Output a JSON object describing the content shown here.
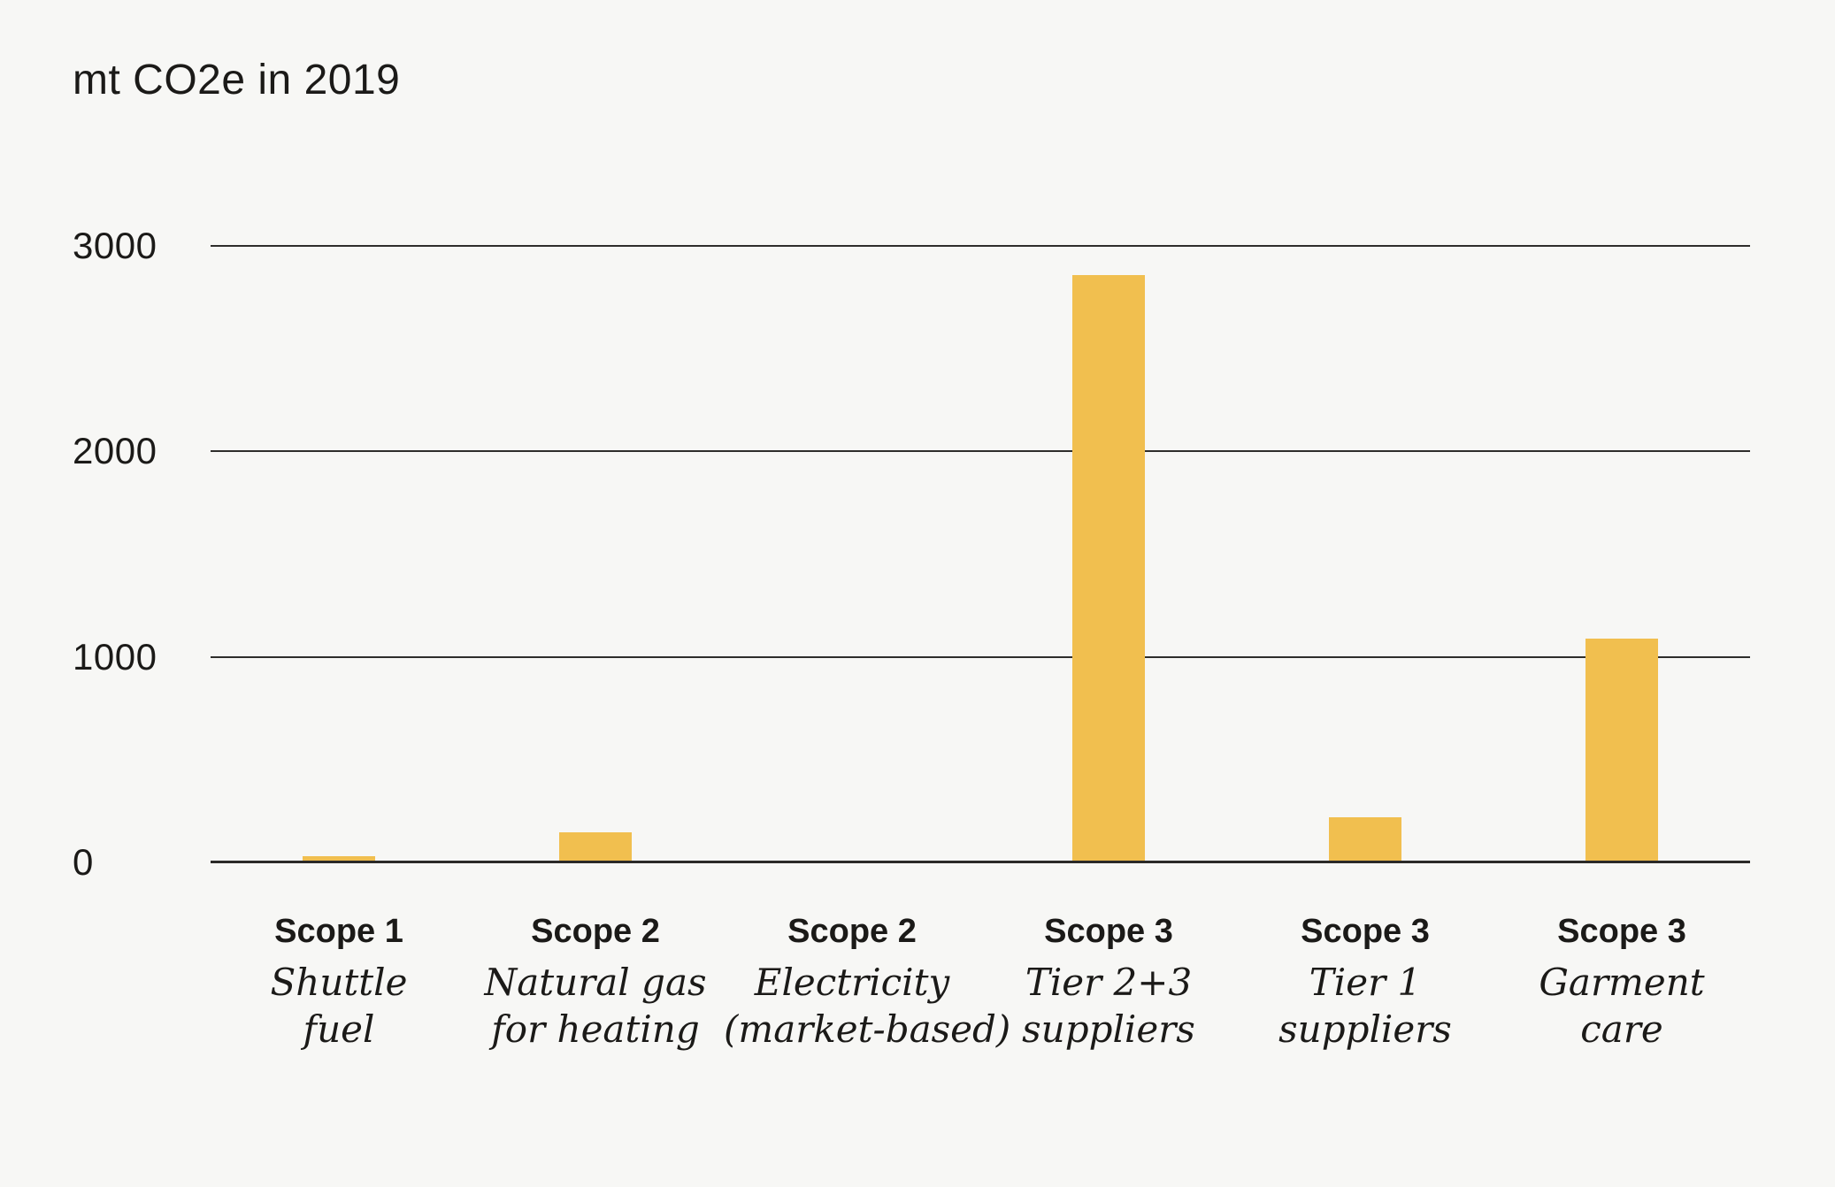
{
  "title": "mt CO2e in 2019",
  "colors": {
    "background": "#f7f7f5",
    "bar": "#f1bf4f",
    "grid_line": "#2e2d2b",
    "axis_line": "#2b2a28",
    "text": "#1b1a18"
  },
  "chart_data": {
    "type": "bar",
    "title": "mt CO2e in 2019",
    "xlabel": "",
    "ylabel": "",
    "ylim": [
      0,
      3000
    ],
    "yticks": [
      0,
      1000,
      2000,
      3000
    ],
    "grid": "horizontal gridlines at each ytick, drawn behind bars",
    "legend": "none",
    "bar_color": "#f1bf4f",
    "categories": [
      "Scope 1 Shuttle fuel",
      "Scope 2 Natural gas for heating",
      "Scope 2 Electricity (market-based)",
      "Scope 3 Tier 2+3 suppliers",
      "Scope 3 Tier 1 suppliers",
      "Scope 3 Garment care"
    ],
    "series": [
      {
        "name": "mt CO2e in 2019",
        "values": [
          30,
          145,
          0,
          2860,
          220,
          1090
        ]
      }
    ],
    "category_labels": [
      {
        "scope": "Scope 1",
        "sublabel_lines": [
          "Shuttle",
          "fuel"
        ],
        "value": 30
      },
      {
        "scope": "Scope 2",
        "sublabel_lines": [
          "Natural gas",
          "for heating"
        ],
        "value": 145
      },
      {
        "scope": "Scope 2",
        "sublabel_lines": [
          "Electricity",
          "(market-based)"
        ],
        "value": 0
      },
      {
        "scope": "Scope 3",
        "sublabel_lines": [
          "Tier 2+3",
          "suppliers"
        ],
        "value": 2860
      },
      {
        "scope": "Scope 3",
        "sublabel_lines": [
          "Tier 1",
          "suppliers"
        ],
        "value": 220
      },
      {
        "scope": "Scope 3",
        "sublabel_lines": [
          "Garment",
          "care"
        ],
        "value": 1090
      }
    ]
  }
}
